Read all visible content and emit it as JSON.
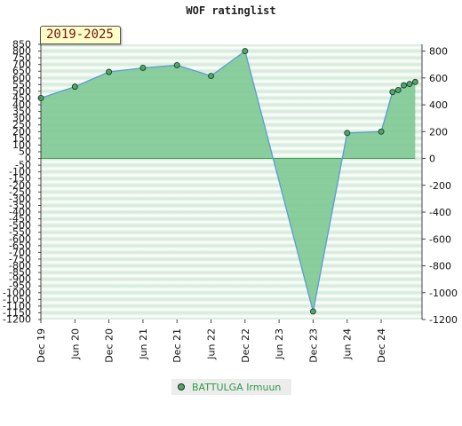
{
  "chart_data": {
    "type": "area",
    "title": "WOF ratinglist",
    "range_label": "2019-2025",
    "x_tick_labels": [
      "Dec 19",
      "Jun 20",
      "Dec 20",
      "Jun 21",
      "Dec 21",
      "Jun 22",
      "Dec 22",
      "Jun 23",
      "Dec 23",
      "Jun 24",
      "Dec 24"
    ],
    "left_axis": {
      "ylim": [
        -1200,
        850
      ],
      "tick_labels": [
        "850",
        "800",
        "750",
        "700",
        "650",
        "600",
        "550",
        "500",
        "450",
        "400",
        "350",
        "300",
        "250",
        "200",
        "150",
        "100",
        "50",
        "0",
        "-50",
        "-100",
        "-150",
        "-200",
        "-250",
        "-300",
        "-350",
        "-400",
        "-450",
        "-500",
        "-550",
        "-600",
        "-650",
        "-700",
        "-750",
        "-800",
        "-850",
        "-900",
        "-950",
        "-1000",
        "-1050",
        "-1100",
        "-1150",
        "-1200"
      ]
    },
    "right_axis": {
      "tick_labels": [
        "800",
        "600",
        "400",
        "200",
        "0",
        "-200",
        "-400",
        "-600",
        "-800",
        "-1000",
        "-1200"
      ]
    },
    "series": [
      {
        "name": "BATTULGA Irmuun",
        "points": [
          {
            "x": "2019-12",
            "y": 450
          },
          {
            "x": "2020-06",
            "y": 535
          },
          {
            "x": "2020-12",
            "y": 645
          },
          {
            "x": "2021-06",
            "y": 675
          },
          {
            "x": "2021-12",
            "y": 695
          },
          {
            "x": "2022-06",
            "y": 615
          },
          {
            "x": "2022-12",
            "y": 800
          },
          {
            "x": "2023-12",
            "y": -1140
          },
          {
            "x": "2024-06",
            "y": 190
          },
          {
            "x": "2024-12",
            "y": 200
          },
          {
            "x": "2025-02",
            "y": 495
          },
          {
            "x": "2025-03",
            "y": 510
          },
          {
            "x": "2025-04",
            "y": 545
          },
          {
            "x": "2025-05",
            "y": 555
          },
          {
            "x": "2025-06",
            "y": 570
          }
        ]
      }
    ],
    "colors": {
      "fill": "#7ec994",
      "line": "#5b9bd5",
      "marker_fill": "#4fa86a",
      "baseline": "#3d9a55"
    },
    "grid": "horizontal-bands",
    "legend_placement": "bottom-center"
  }
}
